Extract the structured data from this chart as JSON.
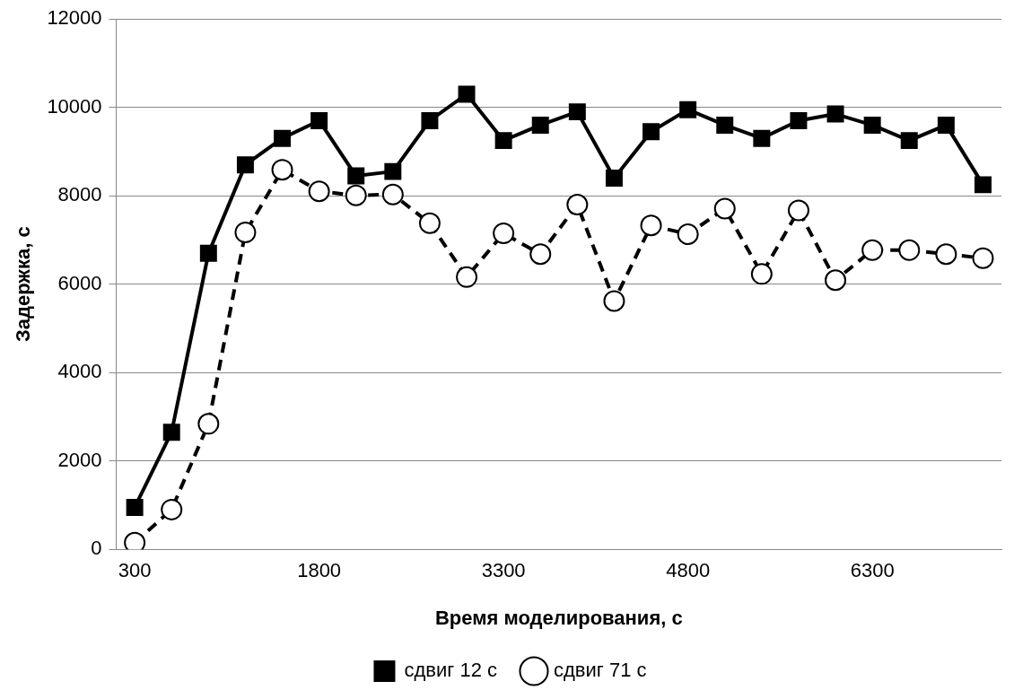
{
  "chart_data": {
    "type": "line",
    "xlabel": "Время моделирования, с",
    "ylabel": "Задержка, с",
    "categories": [
      "300",
      null,
      null,
      null,
      null,
      "1800",
      null,
      null,
      null,
      null,
      "3300",
      null,
      null,
      null,
      null,
      "4800",
      null,
      null,
      null,
      null,
      "6300",
      null,
      null,
      null
    ],
    "series": [
      {
        "name": "сдвиг 12 с",
        "color": "#000000",
        "marker": "square",
        "line_style": "solid",
        "values": [
          950,
          2650,
          6700,
          8700,
          9300,
          9700,
          8450,
          8550,
          9700,
          10300,
          9250,
          9600,
          9900,
          8400,
          9450,
          9950,
          9600,
          9300,
          9700,
          9850,
          9600,
          9250,
          9600,
          8250
        ]
      },
      {
        "name": "сдвиг 71 с",
        "color": "#000000",
        "marker": "circle",
        "line_style": "dashed",
        "values": [
          150,
          900,
          2840,
          7170,
          8590,
          8100,
          8010,
          8030,
          7380,
          6160,
          7150,
          6680,
          7800,
          5620,
          7330,
          7130,
          7710,
          6230,
          7670,
          6090,
          6770,
          6770,
          6680,
          6590
        ]
      }
    ],
    "ylim": [
      0,
      12000
    ],
    "yticks": [
      0,
      2000,
      4000,
      6000,
      8000,
      10000,
      12000
    ],
    "grid": "y",
    "legend": "bottom"
  }
}
